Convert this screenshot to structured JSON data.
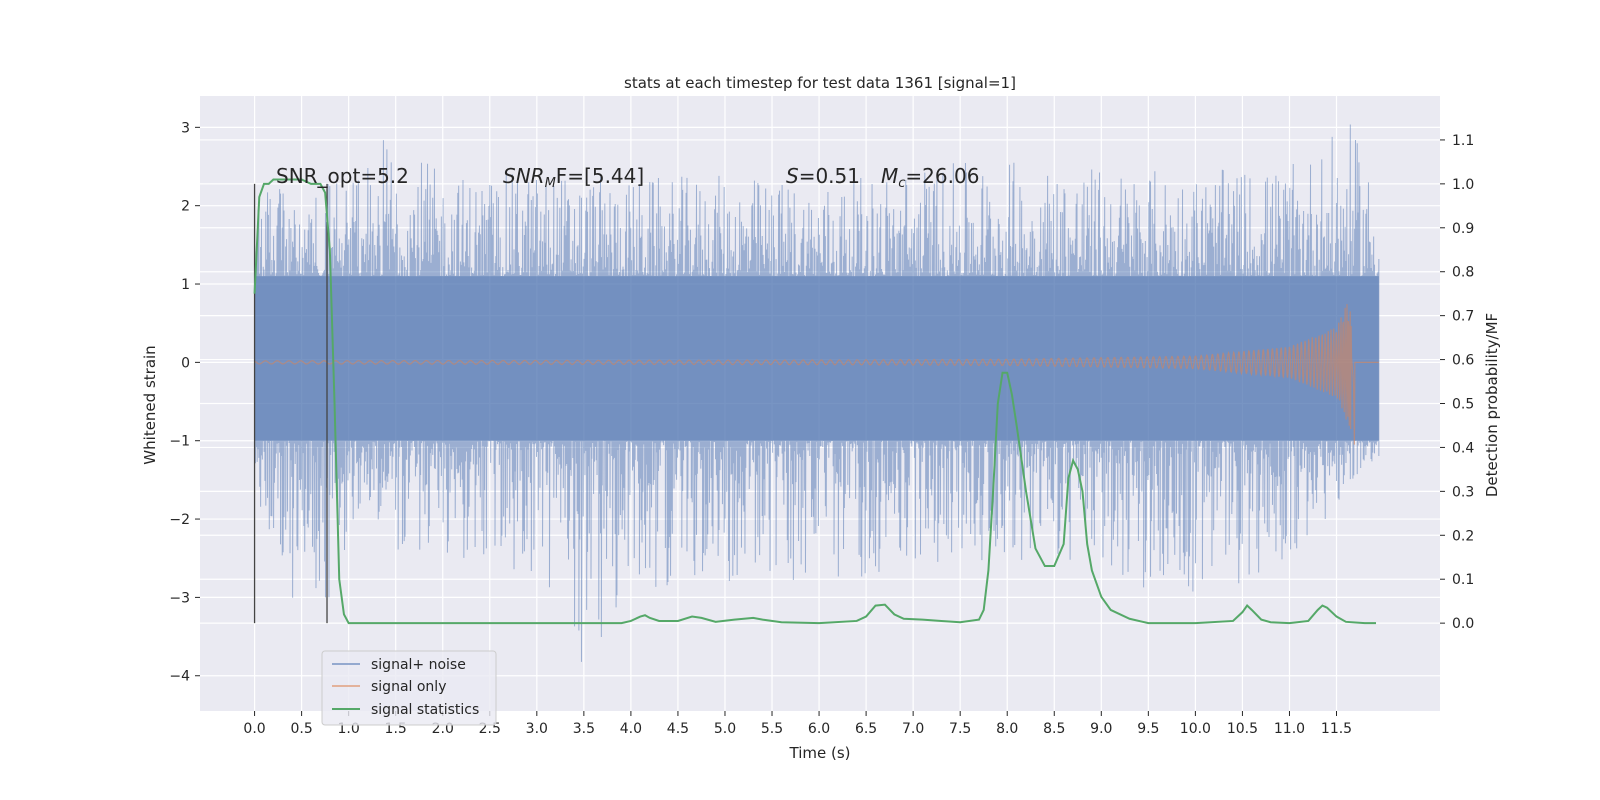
{
  "chart_data": {
    "type": "line",
    "title": "stats at each timestep for test data 1361 [signal=1]",
    "xlabel": "Time (s)",
    "ylabel": "Whitened strain",
    "ylabel_right": "Detection probability/MF",
    "xlim": [
      -0.58,
      12.6
    ],
    "ylim": [
      -4.45,
      3.4
    ],
    "ylim_right": [
      -0.2,
      1.2
    ],
    "x_ticks": [
      0.0,
      0.5,
      1.0,
      1.5,
      2.0,
      2.5,
      3.0,
      3.5,
      4.0,
      4.5,
      5.0,
      5.5,
      6.0,
      6.5,
      7.0,
      7.5,
      8.0,
      8.5,
      9.0,
      9.5,
      10.0,
      10.5,
      11.0,
      11.5
    ],
    "x_tick_labels": [
      "0.0",
      "0.5",
      "1.0",
      "1.5",
      "2.0",
      "2.5",
      "3.0",
      "3.5",
      "4.0",
      "4.5",
      "5.0",
      "5.5",
      "6.0",
      "6.5",
      "7.0",
      "7.5",
      "8.0",
      "8.5",
      "9.0",
      "9.5",
      "10.0",
      "10.5",
      "11.0",
      "11.5"
    ],
    "y_ticks": [
      -4,
      -3,
      -2,
      -1,
      0,
      1,
      2,
      3
    ],
    "y_tick_labels": [
      "−4",
      "−3",
      "−2",
      "−1",
      "0",
      "1",
      "2",
      "3"
    ],
    "y_right_ticks": [
      0.0,
      0.1,
      0.2,
      0.3,
      0.4,
      0.5,
      0.6,
      0.7,
      0.8,
      0.9,
      1.0,
      1.1
    ],
    "y_right_tick_labels": [
      "0.0",
      "0.1",
      "0.2",
      "0.3",
      "0.4",
      "0.5",
      "0.6",
      "0.7",
      "0.8",
      "0.9",
      "1.0",
      "1.1"
    ],
    "grid": true,
    "legend_position": "lower-left",
    "annotations": {
      "snr_opt": "SNR_opt=5.2",
      "snr_mf_main": "SNR",
      "snr_mf_sub": "M",
      "snr_mf_rest": "F=[5.44]",
      "s_main": "S",
      "s_rest": "=0.51",
      "mc_main": "M",
      "mc_sub": "c",
      "mc_rest": "=26.06"
    },
    "vertical_lines_x": [
      0.0,
      0.77
    ],
    "series": [
      {
        "name": "signal+ noise",
        "color": "#4c72b0",
        "opacity": 0.5,
        "t_range": [
          0.0,
          11.95
        ],
        "envelope_upper": [
          [
            0.0,
            2.3
          ],
          [
            0.5,
            2.4
          ],
          [
            1.0,
            2.3
          ],
          [
            1.4,
            3.0
          ],
          [
            2.0,
            2.4
          ],
          [
            3.0,
            2.45
          ],
          [
            4.0,
            2.35
          ],
          [
            5.0,
            2.4
          ],
          [
            6.0,
            2.3
          ],
          [
            7.0,
            2.5
          ],
          [
            8.0,
            2.6
          ],
          [
            9.0,
            2.5
          ],
          [
            10.0,
            2.45
          ],
          [
            11.0,
            2.5
          ],
          [
            11.65,
            3.05
          ],
          [
            11.95,
            2.2
          ]
        ],
        "envelope_lower": [
          [
            0.0,
            -2.2
          ],
          [
            0.5,
            -3.25
          ],
          [
            0.7,
            -3.35
          ],
          [
            1.0,
            -2.4
          ],
          [
            2.0,
            -2.5
          ],
          [
            3.0,
            -2.8
          ],
          [
            3.57,
            -4.05
          ],
          [
            4.0,
            -2.9
          ],
          [
            5.0,
            -2.8
          ],
          [
            6.0,
            -2.9
          ],
          [
            7.0,
            -2.6
          ],
          [
            8.0,
            -2.5
          ],
          [
            9.0,
            -2.7
          ],
          [
            10.0,
            -3.1
          ],
          [
            11.0,
            -2.6
          ],
          [
            11.95,
            -1.2
          ]
        ],
        "core_band": [
          -1.0,
          1.1
        ]
      },
      {
        "name": "signal only",
        "color": "#dd8452",
        "amplitude_points": [
          [
            0.0,
            0.02
          ],
          [
            6.0,
            0.03
          ],
          [
            8.0,
            0.04
          ],
          [
            10.0,
            0.08
          ],
          [
            11.0,
            0.2
          ],
          [
            11.5,
            0.45
          ],
          [
            11.66,
            0.9
          ],
          [
            11.68,
            0.0
          ]
        ]
      },
      {
        "name": "signal statistics",
        "color": "#55a868",
        "x": [
          0.0,
          0.05,
          0.1,
          0.15,
          0.2,
          0.3,
          0.4,
          0.5,
          0.6,
          0.7,
          0.75,
          0.8,
          0.85,
          0.9,
          0.95,
          1.0,
          1.5,
          2.0,
          2.5,
          3.0,
          3.5,
          3.9,
          4.0,
          4.1,
          4.15,
          4.2,
          4.3,
          4.5,
          4.65,
          4.75,
          4.9,
          5.1,
          5.3,
          5.4,
          5.6,
          6.0,
          6.4,
          6.5,
          6.6,
          6.7,
          6.8,
          6.9,
          7.1,
          7.3,
          7.5,
          7.7,
          7.75,
          7.8,
          7.85,
          7.9,
          7.95,
          8.0,
          8.05,
          8.1,
          8.2,
          8.3,
          8.4,
          8.5,
          8.6,
          8.65,
          8.7,
          8.75,
          8.8,
          8.85,
          8.9,
          9.0,
          9.1,
          9.3,
          9.5,
          10.0,
          10.4,
          10.5,
          10.55,
          10.6,
          10.7,
          10.8,
          11.0,
          11.2,
          11.3,
          11.35,
          11.4,
          11.5,
          11.6,
          11.8,
          11.92
        ],
        "values": [
          0.75,
          0.97,
          1.0,
          1.0,
          1.01,
          1.01,
          1.01,
          1.01,
          1.0,
          1.0,
          0.98,
          0.85,
          0.5,
          0.1,
          0.02,
          0.0,
          0.0,
          0.0,
          0.0,
          0.0,
          0.0,
          0.0,
          0.005,
          0.015,
          0.018,
          0.012,
          0.005,
          0.005,
          0.015,
          0.012,
          0.003,
          0.008,
          0.012,
          0.008,
          0.002,
          0.0,
          0.005,
          0.015,
          0.04,
          0.042,
          0.02,
          0.01,
          0.008,
          0.005,
          0.002,
          0.008,
          0.03,
          0.12,
          0.3,
          0.5,
          0.57,
          0.57,
          0.52,
          0.45,
          0.3,
          0.17,
          0.13,
          0.13,
          0.18,
          0.33,
          0.37,
          0.35,
          0.3,
          0.18,
          0.12,
          0.06,
          0.03,
          0.01,
          0.0,
          0.0,
          0.005,
          0.025,
          0.04,
          0.03,
          0.008,
          0.002,
          0.0,
          0.005,
          0.03,
          0.04,
          0.035,
          0.015,
          0.003,
          0.0,
          0.0
        ]
      }
    ]
  }
}
